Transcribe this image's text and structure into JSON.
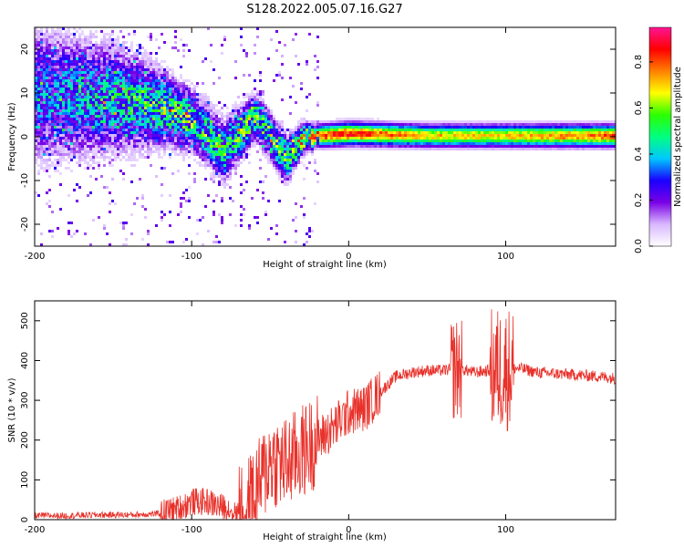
{
  "title": "S128.2022.005.07.16.G27",
  "chart_data": [
    {
      "type": "heatmap",
      "xlabel": "Height of straight line (km)",
      "ylabel": "Frequency (Hz)",
      "xlim": [
        -200,
        170
      ],
      "ylim": [
        -25,
        25
      ],
      "xticks": [
        -200,
        -100,
        0,
        100
      ],
      "yticks": [
        -20,
        -10,
        0,
        10,
        20
      ],
      "colorbar": {
        "label": "Normalized spectral amplitude",
        "range": [
          0.0,
          0.95
        ],
        "ticks": [
          "0.0",
          "0.2",
          "0.4",
          "0.6",
          "0.8"
        ],
        "colors": [
          "#ffffff",
          "#d9b8ff",
          "#7a00e6",
          "#1a00ff",
          "#00c8ff",
          "#00ff80",
          "#2cff00",
          "#ffff00",
          "#ff8000",
          "#ff0000",
          "#ff1493"
        ]
      },
      "ridge": [
        {
          "x": -200,
          "f": 10,
          "amp": 0.35,
          "spread": 9
        },
        {
          "x": -150,
          "f": 9,
          "amp": 0.45,
          "spread": 7
        },
        {
          "x": -120,
          "f": 7,
          "amp": 0.55,
          "spread": 5
        },
        {
          "x": -100,
          "f": 4,
          "amp": 0.55,
          "spread": 4
        },
        {
          "x": -80,
          "f": -3,
          "amp": 0.5,
          "spread": 4
        },
        {
          "x": -60,
          "f": 5,
          "amp": 0.6,
          "spread": 3
        },
        {
          "x": -40,
          "f": -5,
          "amp": 0.55,
          "spread": 3
        },
        {
          "x": -30,
          "f": 0,
          "amp": 0.75,
          "spread": 2
        },
        {
          "x": -20,
          "f": 0.5,
          "amp": 0.8,
          "spread": 1.5
        },
        {
          "x": 0,
          "f": 1,
          "amp": 0.85,
          "spread": 1.5
        },
        {
          "x": 50,
          "f": 0.5,
          "amp": 0.7,
          "spread": 1.5
        },
        {
          "x": 100,
          "f": 0.5,
          "amp": 0.7,
          "spread": 1.5
        },
        {
          "x": 170,
          "f": 0.5,
          "amp": 0.8,
          "spread": 1.5
        }
      ]
    },
    {
      "type": "line",
      "xlabel": "Height of straight line (km)",
      "ylabel": "SNR (10 * v/v)",
      "xlim": [
        -200,
        170
      ],
      "ylim": [
        0,
        550
      ],
      "xticks": [
        -200,
        -100,
        0,
        100
      ],
      "yticks": [
        0,
        100,
        200,
        300,
        400,
        500
      ],
      "color": "#e8312a",
      "series": [
        {
          "x": [
            -200,
            -180,
            -160,
            -140,
            -120,
            -110,
            -100,
            -90,
            -80,
            -70,
            -60,
            -50,
            -40,
            -30,
            -20,
            -10,
            0,
            10,
            20,
            30,
            40,
            50,
            60,
            70,
            80,
            90,
            100,
            110,
            120,
            140,
            160,
            170
          ],
          "y": [
            10,
            10,
            12,
            12,
            15,
            25,
            45,
            45,
            30,
            20,
            60,
            150,
            140,
            170,
            200,
            230,
            270,
            280,
            320,
            360,
            370,
            375,
            375,
            380,
            370,
            375,
            380,
            380,
            370,
            365,
            360,
            355
          ]
        }
      ]
    }
  ]
}
